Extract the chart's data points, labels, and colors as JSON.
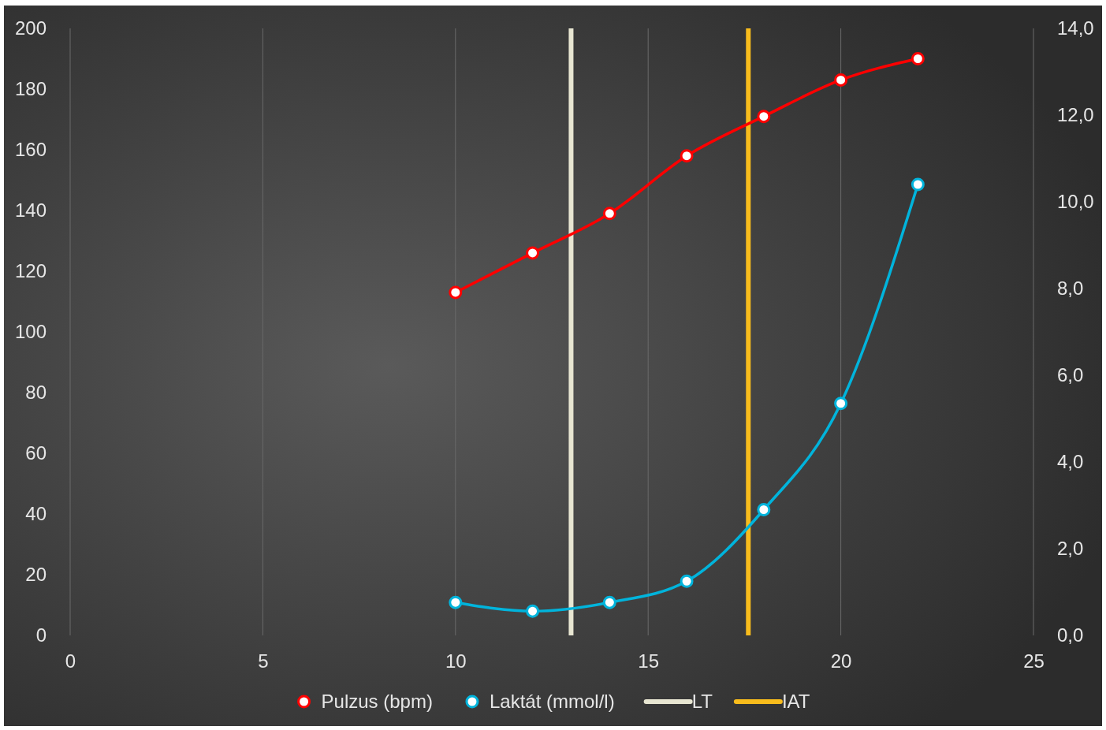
{
  "chart_data": {
    "type": "line",
    "x": [
      10,
      12,
      14,
      16,
      18,
      20,
      22
    ],
    "series": [
      {
        "name": "Pulzus (bpm)",
        "color": "#ff0000",
        "values": [
          113,
          126,
          139,
          158,
          171,
          183,
          190
        ]
      },
      {
        "name": "Laktát (mmol/l)",
        "color": "#00b4dc",
        "axis": "y2",
        "values": [
          0.76,
          0.56,
          0.76,
          1.25,
          2.9,
          5.35,
          10.4
        ]
      }
    ],
    "xlim": [
      0,
      25
    ],
    "xticks": [
      0,
      5,
      10,
      15,
      20,
      25
    ],
    "ylim": [
      0,
      200
    ],
    "yticks": [
      0,
      20,
      40,
      60,
      80,
      100,
      120,
      140,
      160,
      180,
      200
    ],
    "y2lim": [
      0,
      14
    ],
    "y2ticks": [
      {
        "value": 0,
        "label": "0,0"
      },
      {
        "value": 2,
        "label": "2,0"
      },
      {
        "value": 4,
        "label": "4,0"
      },
      {
        "value": 6,
        "label": "6,0"
      },
      {
        "value": 8,
        "label": "8,0"
      },
      {
        "value": 10,
        "label": "10,0"
      },
      {
        "value": 12,
        "label": "12,0"
      },
      {
        "value": 14,
        "label": "14,0"
      }
    ],
    "ref_lines": [
      {
        "axis": "x",
        "value": 13,
        "label": "LT",
        "color": "#e8e6d2"
      },
      {
        "axis": "x",
        "value": 17.6,
        "label": "IAT",
        "color": "#f8bc1c"
      }
    ],
    "grid": "x",
    "legend": "bottom",
    "marker": "circle",
    "line_style": "solid"
  }
}
